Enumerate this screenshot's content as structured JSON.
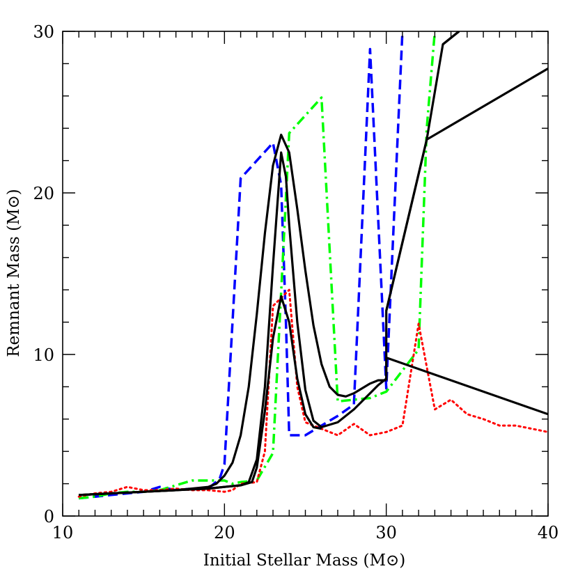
{
  "chart_data": {
    "type": "line",
    "xlabel": "Initial Stellar Mass (M⊙)",
    "ylabel": "Remnant Mass (M⊙)",
    "xlim": [
      10,
      40
    ],
    "ylim": [
      0,
      30
    ],
    "x_ticks": [
      10,
      20,
      30,
      40
    ],
    "y_ticks": [
      0,
      10,
      20,
      30
    ],
    "grid": false,
    "legend": "none",
    "series": [
      {
        "style": "dashed",
        "color": "#0000ff",
        "points": [
          [
            11,
            1.1
          ],
          [
            12,
            1.2
          ],
          [
            13,
            1.3
          ],
          [
            14,
            1.4
          ],
          [
            15,
            1.5
          ],
          [
            16,
            1.8
          ],
          [
            17,
            1.6
          ],
          [
            18,
            1.7
          ],
          [
            19,
            1.7
          ],
          [
            19.7,
            2.3
          ],
          [
            20,
            3.2
          ],
          [
            21,
            20.9
          ],
          [
            23,
            23.1
          ],
          [
            23.5,
            20.5
          ],
          [
            23.8,
            12
          ],
          [
            24,
            5
          ],
          [
            25,
            5
          ],
          [
            26,
            5.6
          ],
          [
            27,
            6.2
          ],
          [
            28,
            6.9
          ],
          [
            29,
            28.9
          ],
          [
            30,
            7.9
          ],
          [
            31,
            30.0
          ]
        ]
      },
      {
        "style": "dash-dot",
        "color": "#00ff00",
        "points": [
          [
            11,
            1.1
          ],
          [
            12,
            1.2
          ],
          [
            13,
            1.4
          ],
          [
            14,
            1.5
          ],
          [
            15,
            1.5
          ],
          [
            16,
            1.6
          ],
          [
            17,
            1.9
          ],
          [
            18,
            2.2
          ],
          [
            19,
            2.2
          ],
          [
            20,
            2.2
          ],
          [
            20.5,
            2.0
          ],
          [
            21,
            2.1
          ],
          [
            22,
            2.2
          ],
          [
            23,
            3.9
          ],
          [
            24,
            23.7
          ],
          [
            26,
            25.9
          ],
          [
            27,
            7.1
          ],
          [
            28,
            7.2
          ],
          [
            29,
            7.3
          ],
          [
            30,
            7.7
          ],
          [
            31,
            9.0
          ],
          [
            32,
            10.3
          ],
          [
            32.5,
            24.0
          ],
          [
            33,
            30.0
          ]
        ]
      },
      {
        "style": "dotted",
        "color": "#ff0000",
        "points": [
          [
            11,
            1.2
          ],
          [
            12,
            1.4
          ],
          [
            13,
            1.5
          ],
          [
            14,
            1.8
          ],
          [
            15,
            1.6
          ],
          [
            16,
            1.6
          ],
          [
            17,
            1.7
          ],
          [
            18,
            1.6
          ],
          [
            19,
            1.6
          ],
          [
            20,
            1.5
          ],
          [
            20.5,
            1.6
          ],
          [
            21,
            2.0
          ],
          [
            22,
            2.1
          ],
          [
            22.5,
            4.0
          ],
          [
            23,
            13.0
          ],
          [
            23.5,
            13.5
          ],
          [
            24,
            14.0
          ],
          [
            24.5,
            8.0
          ],
          [
            25,
            5.8
          ],
          [
            26,
            5.4
          ],
          [
            27,
            5.0
          ],
          [
            28,
            5.7
          ],
          [
            29,
            5.0
          ],
          [
            30,
            5.2
          ],
          [
            31,
            5.6
          ],
          [
            32,
            11.9
          ],
          [
            33,
            6.6
          ],
          [
            34,
            7.2
          ],
          [
            35,
            6.3
          ],
          [
            36,
            6.0
          ],
          [
            37,
            5.6
          ],
          [
            38,
            5.6
          ],
          [
            39,
            5.4
          ],
          [
            40,
            5.2
          ]
        ]
      },
      {
        "style": "solid",
        "color": "#000000",
        "points": [
          [
            11,
            1.3
          ],
          [
            13,
            1.4
          ],
          [
            15,
            1.5
          ],
          [
            17,
            1.6
          ],
          [
            19,
            1.8
          ],
          [
            19.5,
            2.0
          ],
          [
            20,
            2.5
          ],
          [
            20.5,
            3.3
          ],
          [
            21,
            5.0
          ],
          [
            21.5,
            8.0
          ],
          [
            22,
            12.5
          ],
          [
            22.5,
            17.5
          ],
          [
            23,
            21.7
          ],
          [
            23.5,
            23.6
          ],
          [
            24,
            22.5
          ],
          [
            24.5,
            19.0
          ],
          [
            25,
            15.2
          ],
          [
            25.5,
            11.8
          ],
          [
            26,
            9.4
          ],
          [
            26.5,
            8.0
          ],
          [
            27,
            7.5
          ],
          [
            27.5,
            7.4
          ],
          [
            28,
            7.6
          ],
          [
            28.5,
            7.9
          ],
          [
            29,
            8.2
          ],
          [
            29.5,
            8.4
          ],
          [
            30,
            8.4
          ]
        ]
      },
      {
        "style": "solid",
        "color": "#000000",
        "points": [
          [
            11,
            1.3
          ],
          [
            13,
            1.4
          ],
          [
            15,
            1.5
          ],
          [
            17,
            1.6
          ],
          [
            19,
            1.7
          ],
          [
            20,
            1.8
          ],
          [
            21,
            1.9
          ],
          [
            21.5,
            2.1
          ],
          [
            22,
            3.5
          ],
          [
            22.5,
            8.0
          ],
          [
            23,
            15.5
          ],
          [
            23.5,
            22.5
          ],
          [
            23.8,
            21.0
          ],
          [
            24,
            18.0
          ],
          [
            24.5,
            12.0
          ],
          [
            25,
            7.8
          ],
          [
            25.5,
            5.9
          ],
          [
            26,
            5.5
          ],
          [
            27,
            5.8
          ],
          [
            28,
            6.6
          ],
          [
            29,
            7.6
          ],
          [
            29.5,
            8.1
          ],
          [
            30,
            8.5
          ]
        ]
      },
      {
        "style": "solid",
        "color": "#000000",
        "points": [
          [
            11,
            1.3
          ],
          [
            13,
            1.4
          ],
          [
            15,
            1.5
          ],
          [
            17,
            1.6
          ],
          [
            19,
            1.7
          ],
          [
            20,
            1.8
          ],
          [
            21,
            1.9
          ],
          [
            21.7,
            2.1
          ],
          [
            22,
            3.0
          ],
          [
            22.5,
            6.5
          ],
          [
            23,
            11.0
          ],
          [
            23.5,
            13.6
          ],
          [
            24,
            12.0
          ],
          [
            24.5,
            8.5
          ],
          [
            25,
            6.3
          ],
          [
            25.5,
            5.5
          ],
          [
            26,
            5.4
          ]
        ]
      },
      {
        "style": "solid",
        "color": "#000000",
        "points": [
          [
            30,
            8.4
          ],
          [
            30,
            12.7
          ],
          [
            32.5,
            23.3
          ],
          [
            40,
            27.7
          ]
        ]
      },
      {
        "style": "solid",
        "color": "#000000",
        "points": [
          [
            30,
            12.7
          ],
          [
            32.5,
            23.3
          ],
          [
            33.5,
            29.2
          ],
          [
            34.5,
            30.0
          ]
        ]
      },
      {
        "style": "solid",
        "color": "#000000",
        "points": [
          [
            33.5,
            29.2
          ],
          [
            34.5,
            30.0
          ]
        ]
      },
      {
        "style": "solid",
        "color": "#000000",
        "points": [
          [
            30,
            8.4
          ],
          [
            30,
            9.8
          ],
          [
            40,
            6.3
          ]
        ]
      }
    ]
  }
}
